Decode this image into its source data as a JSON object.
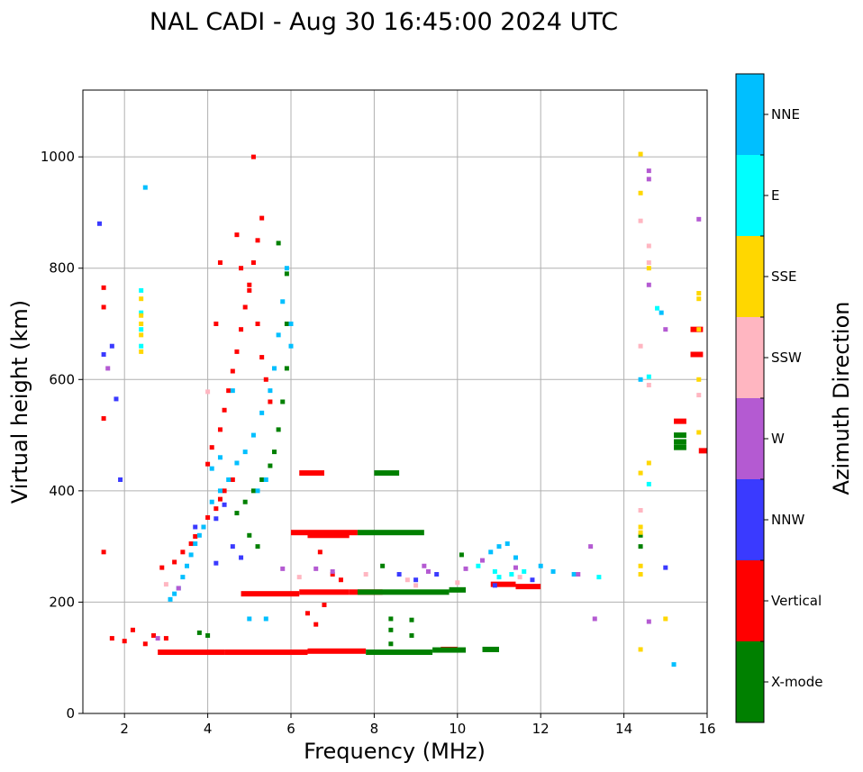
{
  "chart_data": {
    "type": "scatter",
    "title": "NAL CADI - Aug 30 16:45:00 2024 UTC",
    "xlabel": "Frequency (MHz)",
    "ylabel": "Virtual height (km)",
    "xlim": [
      1,
      16
    ],
    "ylim": [
      0,
      1120
    ],
    "xticks": [
      2,
      4,
      6,
      8,
      10,
      12,
      14,
      16
    ],
    "yticks": [
      0,
      200,
      400,
      600,
      800,
      1000
    ],
    "grid": true,
    "colorbar": {
      "label": "Azimuth Direction",
      "categories": [
        {
          "name": "X-mode",
          "color": "#008000"
        },
        {
          "name": "Vertical",
          "color": "#ff0000"
        },
        {
          "name": "NNW",
          "color": "#3a3aff"
        },
        {
          "name": "W",
          "color": "#b45ad2"
        },
        {
          "name": "SSW",
          "color": "#ffb6c1"
        },
        {
          "name": "SSE",
          "color": "#ffd700"
        },
        {
          "name": "E",
          "color": "#00ffff"
        },
        {
          "name": "NNE",
          "color": "#00bfff"
        }
      ]
    },
    "series": [
      {
        "name": "Vertical",
        "segments": [
          [
            2.8,
            4.4,
            110
          ],
          [
            4.4,
            6.4,
            110
          ],
          [
            6.4,
            7.8,
            112
          ],
          [
            9.6,
            10.0,
            115
          ],
          [
            4.8,
            6.2,
            215
          ],
          [
            6.2,
            7.4,
            218
          ],
          [
            7.4,
            8.2,
            218
          ],
          [
            10.8,
            11.4,
            232
          ],
          [
            11.4,
            12.0,
            228
          ],
          [
            6.0,
            7.6,
            325
          ],
          [
            6.4,
            7.4,
            320
          ],
          [
            6.2,
            6.8,
            432
          ],
          [
            15.2,
            15.5,
            525
          ],
          [
            15.6,
            15.9,
            690
          ],
          [
            15.6,
            15.9,
            645
          ],
          [
            15.8,
            16.0,
            472
          ]
        ],
        "points": [
          [
            2.9,
            262
          ],
          [
            3.2,
            272
          ],
          [
            3.4,
            290
          ],
          [
            3.6,
            305
          ],
          [
            3.7,
            318
          ],
          [
            3.9,
            335
          ],
          [
            4.0,
            352
          ],
          [
            4.2,
            368
          ],
          [
            4.3,
            385
          ],
          [
            4.4,
            400
          ],
          [
            4.6,
            420
          ],
          [
            4.0,
            448
          ],
          [
            4.1,
            478
          ],
          [
            4.3,
            510
          ],
          [
            4.4,
            545
          ],
          [
            4.5,
            580
          ],
          [
            4.6,
            615
          ],
          [
            4.7,
            650
          ],
          [
            4.8,
            690
          ],
          [
            4.9,
            730
          ],
          [
            5.0,
            770
          ],
          [
            5.1,
            810
          ],
          [
            5.2,
            850
          ],
          [
            5.3,
            890
          ],
          [
            4.7,
            860
          ],
          [
            4.8,
            800
          ],
          [
            5.0,
            760
          ],
          [
            5.2,
            700
          ],
          [
            5.3,
            640
          ],
          [
            5.4,
            600
          ],
          [
            5.5,
            560
          ],
          [
            5.1,
            1000
          ],
          [
            4.3,
            810
          ],
          [
            4.2,
            700
          ],
          [
            1.5,
            765
          ],
          [
            1.5,
            730
          ],
          [
            1.5,
            530
          ],
          [
            1.5,
            290
          ],
          [
            1.7,
            135
          ],
          [
            2.0,
            130
          ],
          [
            2.2,
            150
          ],
          [
            2.5,
            125
          ],
          [
            2.7,
            140
          ],
          [
            3.0,
            135
          ],
          [
            6.4,
            180
          ],
          [
            6.6,
            160
          ],
          [
            6.8,
            195
          ],
          [
            7.0,
            250
          ],
          [
            7.2,
            240
          ],
          [
            6.7,
            290
          ]
        ]
      },
      {
        "name": "X-mode",
        "segments": [
          [
            7.8,
            9.4,
            110
          ],
          [
            9.4,
            10.2,
            114
          ],
          [
            10.6,
            11.0,
            115
          ],
          [
            7.6,
            9.8,
            218
          ],
          [
            9.8,
            10.2,
            222
          ],
          [
            7.6,
            9.2,
            325
          ],
          [
            8.0,
            8.6,
            432
          ],
          [
            15.2,
            15.5,
            500
          ],
          [
            15.2,
            15.5,
            488
          ],
          [
            15.2,
            15.5,
            478
          ]
        ],
        "points": [
          [
            3.8,
            145
          ],
          [
            4.0,
            140
          ],
          [
            8.4,
            170
          ],
          [
            8.9,
            168
          ],
          [
            8.4,
            150
          ],
          [
            8.9,
            140
          ],
          [
            8.4,
            125
          ],
          [
            4.7,
            360
          ],
          [
            4.9,
            380
          ],
          [
            5.1,
            400
          ],
          [
            5.3,
            420
          ],
          [
            5.5,
            445
          ],
          [
            5.6,
            470
          ],
          [
            5.7,
            510
          ],
          [
            5.8,
            560
          ],
          [
            5.9,
            620
          ],
          [
            5.9,
            700
          ],
          [
            5.9,
            790
          ],
          [
            5.7,
            845
          ],
          [
            5.2,
            300
          ],
          [
            5.0,
            320
          ],
          [
            8.2,
            265
          ],
          [
            10.1,
            285
          ],
          [
            14.4,
            300
          ],
          [
            14.4,
            320
          ]
        ]
      },
      {
        "name": "NNE",
        "points": [
          [
            3.1,
            205
          ],
          [
            3.2,
            215
          ],
          [
            3.3,
            225
          ],
          [
            3.4,
            245
          ],
          [
            3.5,
            265
          ],
          [
            3.6,
            285
          ],
          [
            3.7,
            305
          ],
          [
            3.8,
            320
          ],
          [
            3.9,
            335
          ],
          [
            4.1,
            380
          ],
          [
            4.3,
            400
          ],
          [
            4.5,
            420
          ],
          [
            4.7,
            450
          ],
          [
            4.9,
            470
          ],
          [
            5.1,
            500
          ],
          [
            5.3,
            540
          ],
          [
            5.5,
            580
          ],
          [
            5.6,
            620
          ],
          [
            5.7,
            680
          ],
          [
            5.8,
            740
          ],
          [
            5.9,
            800
          ],
          [
            6.0,
            700
          ],
          [
            6.0,
            660
          ],
          [
            4.1,
            440
          ],
          [
            4.3,
            460
          ],
          [
            2.5,
            945
          ],
          [
            4.6,
            580
          ],
          [
            5.2,
            400
          ],
          [
            5.4,
            420
          ],
          [
            10.8,
            290
          ],
          [
            11.0,
            300
          ],
          [
            11.2,
            305
          ],
          [
            11.4,
            280
          ],
          [
            12.0,
            265
          ],
          [
            12.3,
            255
          ],
          [
            12.8,
            250
          ],
          [
            14.4,
            600
          ],
          [
            14.9,
            720
          ],
          [
            15.2,
            88
          ],
          [
            5.0,
            170
          ],
          [
            5.4,
            170
          ]
        ]
      },
      {
        "name": "E",
        "points": [
          [
            2.4,
            690
          ],
          [
            2.4,
            720
          ],
          [
            2.4,
            760
          ],
          [
            2.4,
            660
          ],
          [
            10.5,
            265
          ],
          [
            10.9,
            255
          ],
          [
            11.0,
            245
          ],
          [
            11.3,
            250
          ],
          [
            11.6,
            255
          ],
          [
            13.4,
            245
          ],
          [
            14.6,
            605
          ],
          [
            14.8,
            728
          ],
          [
            14.6,
            412
          ]
        ]
      },
      {
        "name": "NNW",
        "points": [
          [
            1.4,
            880
          ],
          [
            1.5,
            645
          ],
          [
            1.7,
            660
          ],
          [
            1.8,
            565
          ],
          [
            1.9,
            420
          ],
          [
            3.7,
            335
          ],
          [
            4.2,
            350
          ],
          [
            4.4,
            375
          ],
          [
            4.6,
            300
          ],
          [
            4.8,
            280
          ],
          [
            8.6,
            250
          ],
          [
            9.0,
            240
          ],
          [
            9.5,
            250
          ],
          [
            10.9,
            230
          ],
          [
            11.8,
            240
          ],
          [
            15.0,
            262
          ],
          [
            4.2,
            270
          ]
        ]
      },
      {
        "name": "W",
        "points": [
          [
            1.6,
            620
          ],
          [
            2.8,
            135
          ],
          [
            3.3,
            225
          ],
          [
            5.8,
            260
          ],
          [
            6.6,
            260
          ],
          [
            7.0,
            255
          ],
          [
            9.3,
            255
          ],
          [
            10.2,
            260
          ],
          [
            10.6,
            275
          ],
          [
            11.4,
            262
          ],
          [
            12.9,
            250
          ],
          [
            13.2,
            300
          ],
          [
            13.3,
            170
          ],
          [
            14.6,
            975
          ],
          [
            14.6,
            960
          ],
          [
            14.6,
            770
          ],
          [
            15.0,
            690
          ],
          [
            15.8,
            888
          ],
          [
            14.6,
            165
          ],
          [
            9.2,
            265
          ]
        ]
      },
      {
        "name": "SSW",
        "points": [
          [
            4.0,
            578
          ],
          [
            6.2,
            245
          ],
          [
            7.8,
            250
          ],
          [
            8.8,
            240
          ],
          [
            9.0,
            230
          ],
          [
            10.0,
            235
          ],
          [
            11.5,
            245
          ],
          [
            14.4,
            885
          ],
          [
            14.6,
            840
          ],
          [
            14.6,
            810
          ],
          [
            14.4,
            660
          ],
          [
            14.6,
            590
          ],
          [
            15.8,
            572
          ],
          [
            14.4,
            365
          ],
          [
            3.0,
            232
          ]
        ]
      },
      {
        "name": "SSE",
        "points": [
          [
            2.4,
            745
          ],
          [
            2.4,
            715
          ],
          [
            2.4,
            700
          ],
          [
            2.4,
            680
          ],
          [
            2.4,
            650
          ],
          [
            14.4,
            1005
          ],
          [
            14.4,
            935
          ],
          [
            14.6,
            800
          ],
          [
            14.6,
            450
          ],
          [
            14.4,
            335
          ],
          [
            14.4,
            325
          ],
          [
            14.4,
            265
          ],
          [
            14.4,
            250
          ],
          [
            14.4,
            115
          ],
          [
            15.0,
            170
          ],
          [
            15.8,
            755
          ],
          [
            15.8,
            745
          ],
          [
            15.8,
            690
          ],
          [
            15.8,
            600
          ],
          [
            15.8,
            505
          ],
          [
            14.4,
            432
          ]
        ]
      }
    ]
  }
}
